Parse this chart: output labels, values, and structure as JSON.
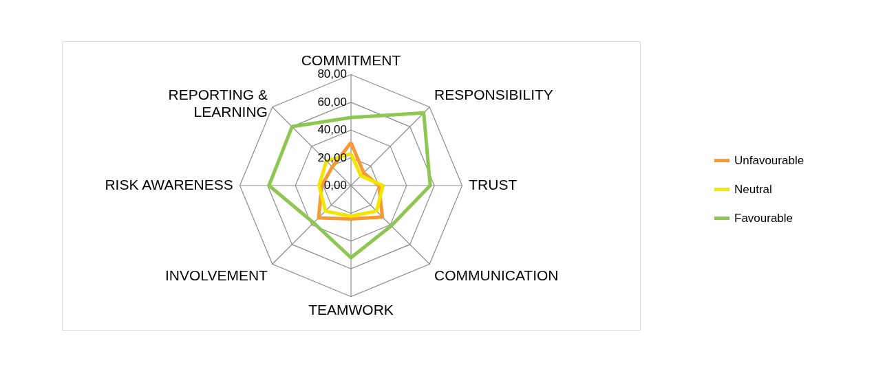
{
  "chart_data": {
    "type": "radar",
    "categories": [
      "COMMITMENT",
      "RESPONSIBILITY",
      "TRUST",
      "COMMUNICATION",
      "TEAMWORK",
      "INVOLVEMENT",
      "RISK AWARENESS",
      "REPORTING & LEARNING"
    ],
    "series": [
      {
        "name": "Unfavourable",
        "color": "#f79a32",
        "values": [
          31,
          13,
          20,
          32,
          24,
          33,
          21,
          19
        ]
      },
      {
        "name": "Neutral",
        "color": "#f2e600",
        "values": [
          23,
          10,
          23,
          26,
          22,
          26,
          23,
          25
        ]
      },
      {
        "name": "Favourable",
        "color": "#8dc752",
        "values": [
          49,
          74,
          57,
          41,
          52,
          38,
          59,
          60
        ]
      }
    ],
    "ylim": [
      0,
      80
    ],
    "yticks": [
      {
        "value": 0,
        "label": "0,00"
      },
      {
        "value": 20,
        "label": "20,00"
      },
      {
        "value": 40,
        "label": "40,00"
      },
      {
        "value": 60,
        "label": "60,00"
      },
      {
        "value": 80,
        "label": "80,00"
      }
    ],
    "grid": true,
    "legend": "right"
  }
}
